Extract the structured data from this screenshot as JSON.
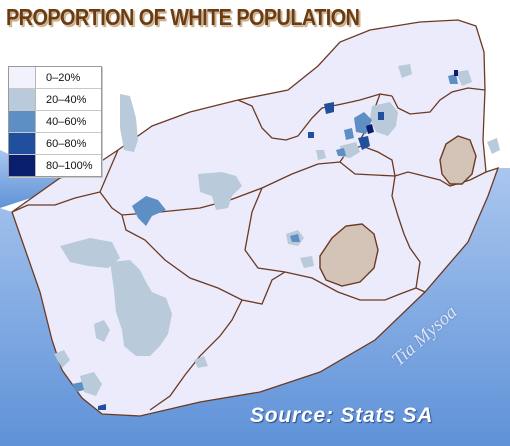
{
  "title": "PROPORTION OF WHITE POPULATION",
  "legend": {
    "items": [
      {
        "label": "0–20%",
        "color": "#f2f2fc"
      },
      {
        "label": "20–40%",
        "color": "#b9cadb"
      },
      {
        "label": "40–60%",
        "color": "#5d8ec4"
      },
      {
        "label": "60–80%",
        "color": "#1f4f9d"
      },
      {
        "label": "80–100%",
        "color": "#0a1e6e"
      }
    ]
  },
  "colors": {
    "ocean": "#6f9fe0",
    "land": "#ecebfb",
    "border": "#6b3a22",
    "neighbour_country": "#d4c4b8"
  },
  "watermark": "Tia Mysoa",
  "source": "Source: Stats SA"
}
